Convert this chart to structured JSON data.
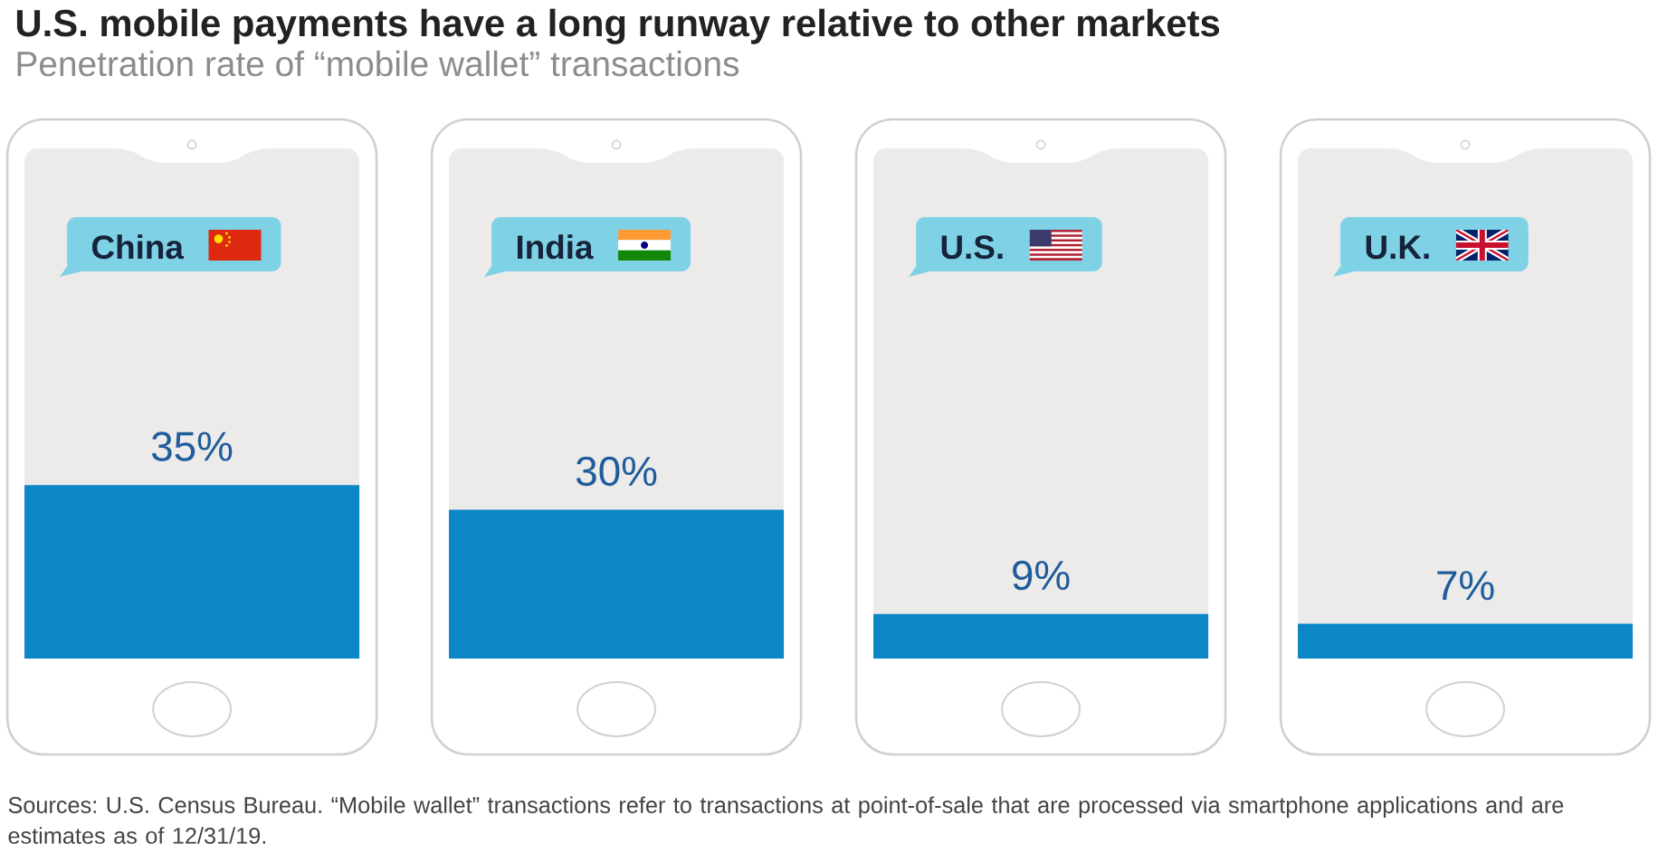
{
  "chart_data": {
    "type": "bar",
    "title": "U.S. mobile payments have a long runway relative to other markets",
    "subtitle": "Penetration rate of “mobile wallet” transactions",
    "categories": [
      "China",
      "India",
      "U.S.",
      "U.K."
    ],
    "values": [
      35,
      30,
      9,
      7
    ],
    "value_labels": [
      "35%",
      "30%",
      "9%",
      "7%"
    ],
    "color": "#0b86c7",
    "annotations": [
      "Sources: U.S. Census Bureau. “Mobile wallet” transactions refer to transactions at point-of-sale that are processed via smartphone applications and are estimates as of 12/31/19."
    ]
  }
}
